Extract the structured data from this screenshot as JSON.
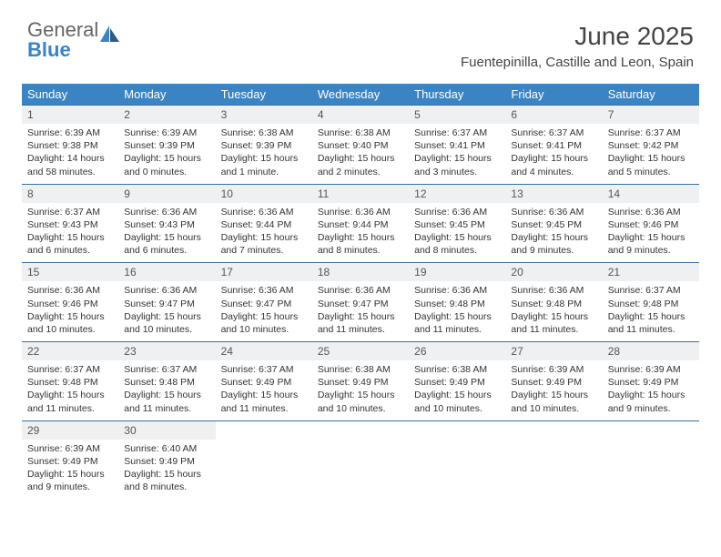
{
  "logo": {
    "textGeneral": "General",
    "textBlue": "Blue"
  },
  "title": "June 2025",
  "location": "Fuentepinilla, Castille and Leon, Spain",
  "colors": {
    "headerBg": "#3b84c4",
    "headerText": "#ffffff",
    "dayNumBg": "#eef0f2",
    "weekBorder": "#3b6fa0",
    "bodyText": "#333333"
  },
  "weekdays": [
    "Sunday",
    "Monday",
    "Tuesday",
    "Wednesday",
    "Thursday",
    "Friday",
    "Saturday"
  ],
  "days": [
    {
      "n": "1",
      "sr": "6:39 AM",
      "ss": "9:38 PM",
      "dl": "14 hours and 58 minutes."
    },
    {
      "n": "2",
      "sr": "6:39 AM",
      "ss": "9:39 PM",
      "dl": "15 hours and 0 minutes."
    },
    {
      "n": "3",
      "sr": "6:38 AM",
      "ss": "9:39 PM",
      "dl": "15 hours and 1 minute."
    },
    {
      "n": "4",
      "sr": "6:38 AM",
      "ss": "9:40 PM",
      "dl": "15 hours and 2 minutes."
    },
    {
      "n": "5",
      "sr": "6:37 AM",
      "ss": "9:41 PM",
      "dl": "15 hours and 3 minutes."
    },
    {
      "n": "6",
      "sr": "6:37 AM",
      "ss": "9:41 PM",
      "dl": "15 hours and 4 minutes."
    },
    {
      "n": "7",
      "sr": "6:37 AM",
      "ss": "9:42 PM",
      "dl": "15 hours and 5 minutes."
    },
    {
      "n": "8",
      "sr": "6:37 AM",
      "ss": "9:43 PM",
      "dl": "15 hours and 6 minutes."
    },
    {
      "n": "9",
      "sr": "6:36 AM",
      "ss": "9:43 PM",
      "dl": "15 hours and 6 minutes."
    },
    {
      "n": "10",
      "sr": "6:36 AM",
      "ss": "9:44 PM",
      "dl": "15 hours and 7 minutes."
    },
    {
      "n": "11",
      "sr": "6:36 AM",
      "ss": "9:44 PM",
      "dl": "15 hours and 8 minutes."
    },
    {
      "n": "12",
      "sr": "6:36 AM",
      "ss": "9:45 PM",
      "dl": "15 hours and 8 minutes."
    },
    {
      "n": "13",
      "sr": "6:36 AM",
      "ss": "9:45 PM",
      "dl": "15 hours and 9 minutes."
    },
    {
      "n": "14",
      "sr": "6:36 AM",
      "ss": "9:46 PM",
      "dl": "15 hours and 9 minutes."
    },
    {
      "n": "15",
      "sr": "6:36 AM",
      "ss": "9:46 PM",
      "dl": "15 hours and 10 minutes."
    },
    {
      "n": "16",
      "sr": "6:36 AM",
      "ss": "9:47 PM",
      "dl": "15 hours and 10 minutes."
    },
    {
      "n": "17",
      "sr": "6:36 AM",
      "ss": "9:47 PM",
      "dl": "15 hours and 10 minutes."
    },
    {
      "n": "18",
      "sr": "6:36 AM",
      "ss": "9:47 PM",
      "dl": "15 hours and 11 minutes."
    },
    {
      "n": "19",
      "sr": "6:36 AM",
      "ss": "9:48 PM",
      "dl": "15 hours and 11 minutes."
    },
    {
      "n": "20",
      "sr": "6:36 AM",
      "ss": "9:48 PM",
      "dl": "15 hours and 11 minutes."
    },
    {
      "n": "21",
      "sr": "6:37 AM",
      "ss": "9:48 PM",
      "dl": "15 hours and 11 minutes."
    },
    {
      "n": "22",
      "sr": "6:37 AM",
      "ss": "9:48 PM",
      "dl": "15 hours and 11 minutes."
    },
    {
      "n": "23",
      "sr": "6:37 AM",
      "ss": "9:48 PM",
      "dl": "15 hours and 11 minutes."
    },
    {
      "n": "24",
      "sr": "6:37 AM",
      "ss": "9:49 PM",
      "dl": "15 hours and 11 minutes."
    },
    {
      "n": "25",
      "sr": "6:38 AM",
      "ss": "9:49 PM",
      "dl": "15 hours and 10 minutes."
    },
    {
      "n": "26",
      "sr": "6:38 AM",
      "ss": "9:49 PM",
      "dl": "15 hours and 10 minutes."
    },
    {
      "n": "27",
      "sr": "6:39 AM",
      "ss": "9:49 PM",
      "dl": "15 hours and 10 minutes."
    },
    {
      "n": "28",
      "sr": "6:39 AM",
      "ss": "9:49 PM",
      "dl": "15 hours and 9 minutes."
    },
    {
      "n": "29",
      "sr": "6:39 AM",
      "ss": "9:49 PM",
      "dl": "15 hours and 9 minutes."
    },
    {
      "n": "30",
      "sr": "6:40 AM",
      "ss": "9:49 PM",
      "dl": "15 hours and 8 minutes."
    }
  ],
  "labels": {
    "sunrise": "Sunrise:",
    "sunset": "Sunset:",
    "daylight": "Daylight:"
  }
}
